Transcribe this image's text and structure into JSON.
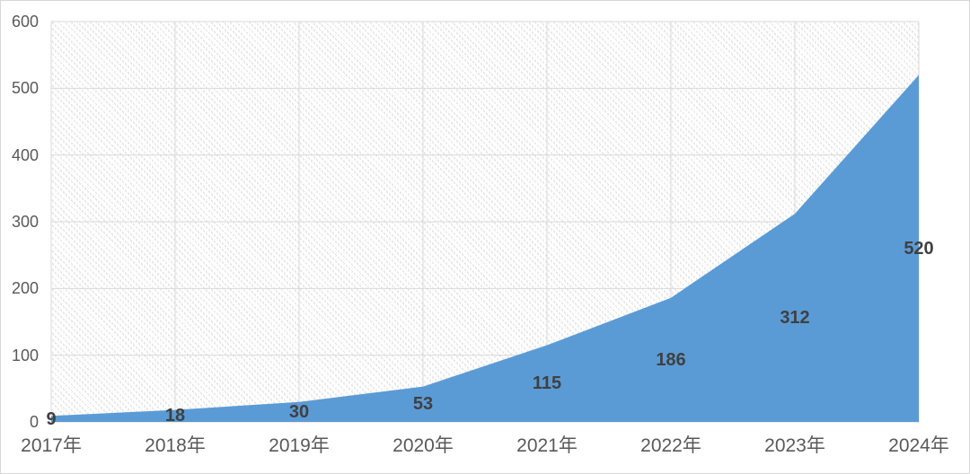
{
  "chart_data": {
    "type": "area",
    "categories": [
      "2017年",
      "2018年",
      "2019年",
      "2020年",
      "2021年",
      "2022年",
      "2023年",
      "2024年"
    ],
    "values": [
      9,
      18,
      30,
      53,
      115,
      186,
      312,
      520
    ],
    "data_labels": [
      "9",
      "18",
      "30",
      "53",
      "115",
      "186",
      "312",
      "520"
    ],
    "title": "",
    "xlabel": "",
    "ylabel": "",
    "ylim": [
      0,
      600
    ],
    "yticks": [
      0,
      100,
      200,
      300,
      400,
      500,
      600
    ],
    "grid": true,
    "legend": "none",
    "plot_background": "diagonal-hatch",
    "colors": {
      "area_fill": "#5B9BD5",
      "data_label": "#404040",
      "axis_label": "#595959",
      "gridline": "#d9d9d9",
      "chart_border": "#d7d7d7",
      "hatch_line": "#e3e3e3"
    }
  }
}
